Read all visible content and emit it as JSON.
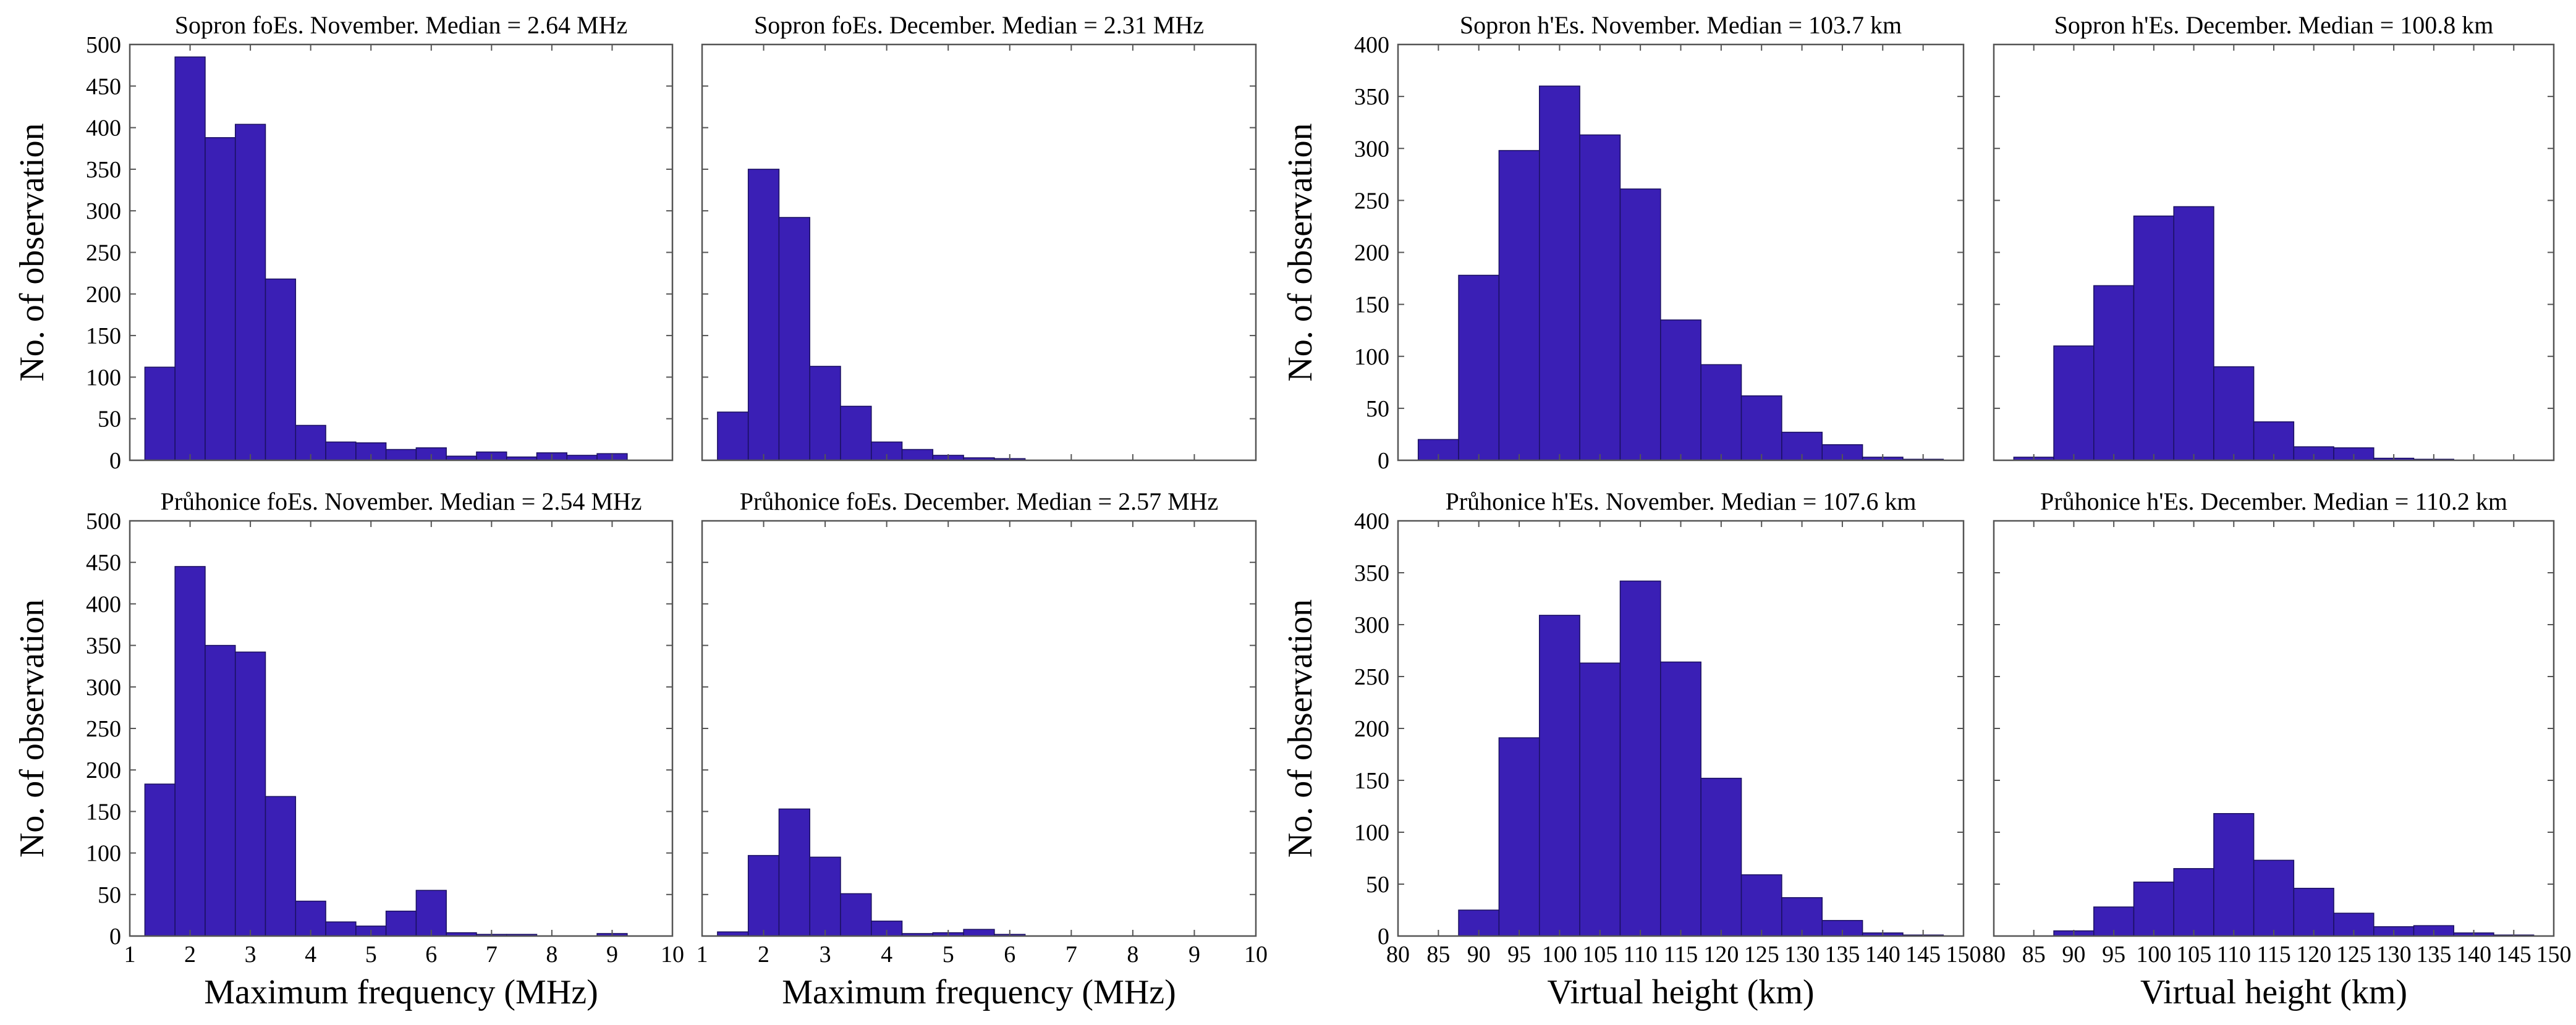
{
  "figure": {
    "bar_color": "#3a1fb5",
    "bar_edge_color": "#1a1060",
    "ylabel": "No. of observation",
    "xlabel_frequency": "Maximum frequency (MHz)",
    "xlabel_height": "Virtual height (km)"
  },
  "chart_data": [
    {
      "type": "bar",
      "title": "Sopron foEs. November. Median = 2.64 MHz",
      "xlabel": "",
      "ylabel": "No. of observation",
      "xlim": [
        1,
        10
      ],
      "ylim": [
        0,
        500
      ],
      "xticks": [
        1,
        2,
        3,
        4,
        5,
        6,
        7,
        8,
        9,
        10
      ],
      "yticks": [
        0,
        50,
        100,
        150,
        200,
        250,
        300,
        350,
        400,
        450,
        500
      ],
      "show_xticklabels": false,
      "show_yticklabels": true,
      "bin_start": 1.25,
      "bin_width": 0.5,
      "values": [
        112,
        485,
        388,
        404,
        218,
        42,
        22,
        21,
        13,
        15,
        5,
        10,
        4,
        9,
        6,
        8
      ]
    },
    {
      "type": "bar",
      "title": "Sopron foEs. December. Median = 2.31 MHz",
      "xlabel": "",
      "ylabel": "",
      "xlim": [
        1,
        10
      ],
      "ylim": [
        0,
        500
      ],
      "xticks": [
        1,
        2,
        3,
        4,
        5,
        6,
        7,
        8,
        9,
        10
      ],
      "yticks": [
        0,
        50,
        100,
        150,
        200,
        250,
        300,
        350,
        400,
        450,
        500
      ],
      "show_xticklabels": false,
      "show_yticklabels": false,
      "bin_start": 1.25,
      "bin_width": 0.5,
      "values": [
        58,
        350,
        292,
        113,
        65,
        22,
        13,
        6,
        3,
        2
      ]
    },
    {
      "type": "bar",
      "title": "Sopron h'Es. November. Median = 103.7 km",
      "xlabel": "",
      "ylabel": "No. of observation",
      "xlim": [
        80,
        150
      ],
      "ylim": [
        0,
        400
      ],
      "xticks": [
        80,
        85,
        90,
        95,
        100,
        105,
        110,
        115,
        120,
        125,
        130,
        135,
        140,
        145,
        150
      ],
      "yticks": [
        0,
        50,
        100,
        150,
        200,
        250,
        300,
        350,
        400
      ],
      "show_xticklabels": false,
      "show_yticklabels": true,
      "bin_start": 82.5,
      "bin_width": 5,
      "values": [
        20,
        178,
        298,
        360,
        313,
        261,
        135,
        92,
        62,
        27,
        15,
        3,
        1
      ]
    },
    {
      "type": "bar",
      "title": "Sopron h'Es. December. Median = 100.8 km",
      "xlabel": "",
      "ylabel": "",
      "xlim": [
        80,
        150
      ],
      "ylim": [
        0,
        400
      ],
      "xticks": [
        80,
        85,
        90,
        95,
        100,
        105,
        110,
        115,
        120,
        125,
        130,
        135,
        140,
        145,
        150
      ],
      "yticks": [
        0,
        50,
        100,
        150,
        200,
        250,
        300,
        350,
        400
      ],
      "show_xticklabels": false,
      "show_yticklabels": false,
      "bin_start": 82.5,
      "bin_width": 5,
      "values": [
        3,
        110,
        168,
        235,
        244,
        90,
        37,
        13,
        12,
        2,
        1
      ]
    },
    {
      "type": "bar",
      "title": "Průhonice foEs. November. Median = 2.54 MHz",
      "xlabel": "Maximum frequency (MHz)",
      "ylabel": "No. of observation",
      "xlim": [
        1,
        10
      ],
      "ylim": [
        0,
        500
      ],
      "xticks": [
        1,
        2,
        3,
        4,
        5,
        6,
        7,
        8,
        9,
        10
      ],
      "yticks": [
        0,
        50,
        100,
        150,
        200,
        250,
        300,
        350,
        400,
        450,
        500
      ],
      "show_xticklabels": true,
      "show_yticklabels": true,
      "bin_start": 1.25,
      "bin_width": 0.5,
      "values": [
        183,
        445,
        350,
        342,
        168,
        42,
        17,
        12,
        30,
        55,
        4,
        2,
        2,
        0,
        0,
        3
      ]
    },
    {
      "type": "bar",
      "title": "Průhonice foEs. December. Median = 2.57 MHz",
      "xlabel": "Maximum frequency (MHz)",
      "ylabel": "",
      "xlim": [
        1,
        10
      ],
      "ylim": [
        0,
        500
      ],
      "xticks": [
        1,
        2,
        3,
        4,
        5,
        6,
        7,
        8,
        9,
        10
      ],
      "yticks": [
        0,
        50,
        100,
        150,
        200,
        250,
        300,
        350,
        400,
        450,
        500
      ],
      "show_xticklabels": true,
      "show_yticklabels": false,
      "bin_start": 1.25,
      "bin_width": 0.5,
      "values": [
        5,
        97,
        153,
        95,
        51,
        18,
        3,
        4,
        8,
        2
      ]
    },
    {
      "type": "bar",
      "title": "Průhonice h'Es. November. Median = 107.6 km",
      "xlabel": "Virtual height (km)",
      "ylabel": "No. of observation",
      "xlim": [
        80,
        150
      ],
      "ylim": [
        0,
        400
      ],
      "xticks": [
        80,
        85,
        90,
        95,
        100,
        105,
        110,
        115,
        120,
        125,
        130,
        135,
        140,
        145,
        150
      ],
      "yticks": [
        0,
        50,
        100,
        150,
        200,
        250,
        300,
        350,
        400
      ],
      "show_xticklabels": true,
      "show_yticklabels": true,
      "bin_start": 87.5,
      "bin_width": 5,
      "values": [
        25,
        191,
        309,
        263,
        342,
        264,
        152,
        59,
        37,
        15,
        3,
        1
      ]
    },
    {
      "type": "bar",
      "title": "Průhonice h'Es. December. Median = 110.2 km",
      "xlabel": "Virtual height (km)",
      "ylabel": "",
      "xlim": [
        80,
        150
      ],
      "ylim": [
        0,
        400
      ],
      "xticks": [
        80,
        85,
        90,
        95,
        100,
        105,
        110,
        115,
        120,
        125,
        130,
        135,
        140,
        145,
        150
      ],
      "yticks": [
        0,
        50,
        100,
        150,
        200,
        250,
        300,
        350,
        400
      ],
      "show_xticklabels": true,
      "show_yticklabels": false,
      "bin_start": 87.5,
      "bin_width": 5,
      "values": [
        5,
        28,
        52,
        65,
        118,
        73,
        46,
        22,
        9,
        10,
        3,
        1
      ]
    }
  ]
}
